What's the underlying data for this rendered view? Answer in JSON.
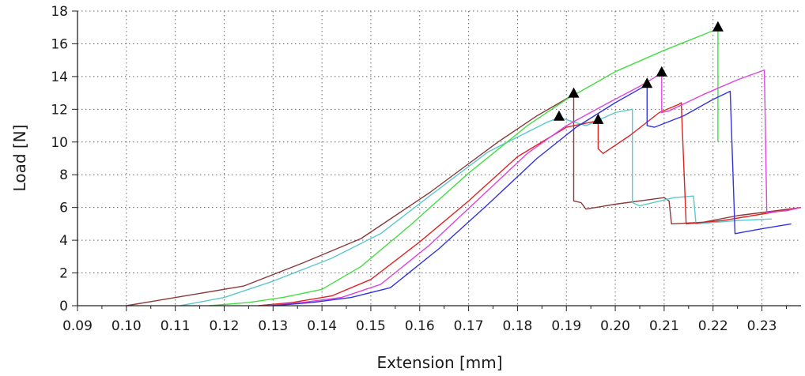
{
  "chart_data": {
    "type": "line",
    "xlabel": "Extension [mm]",
    "ylabel": "Load [N]",
    "xlim": [
      0.09,
      0.238
    ],
    "ylim": [
      0,
      18
    ],
    "xticks": [
      "0.09",
      "0.10",
      "0.11",
      "0.12",
      "0.13",
      "0.14",
      "0.15",
      "0.16",
      "0.17",
      "0.18",
      "0.19",
      "0.20",
      "0.21",
      "0.22",
      "0.23"
    ],
    "yticks": [
      "0",
      "2",
      "4",
      "6",
      "8",
      "10",
      "12",
      "14",
      "16",
      "18"
    ],
    "grid": true,
    "grid_style": "dotted",
    "series": [
      {
        "color": "#8b3a3a",
        "points": [
          [
            0.1,
            0
          ],
          [
            0.112,
            0.6
          ],
          [
            0.124,
            1.2
          ],
          [
            0.136,
            2.6
          ],
          [
            0.148,
            4.1
          ],
          [
            0.162,
            6.9
          ],
          [
            0.176,
            10.0
          ],
          [
            0.184,
            11.6
          ],
          [
            0.1915,
            12.9
          ],
          [
            0.1915,
            6.4
          ],
          [
            0.193,
            6.3
          ],
          [
            0.194,
            5.9
          ],
          [
            0.2,
            6.2
          ],
          [
            0.21,
            6.6
          ],
          [
            0.211,
            6.4
          ],
          [
            0.2115,
            5.0
          ],
          [
            0.218,
            5.1
          ],
          [
            0.225,
            5.5
          ],
          [
            0.238,
            6.0
          ]
        ],
        "marker": [
          0.1915,
          12.9
        ]
      },
      {
        "color": "#5bc8cc",
        "points": [
          [
            0.111,
            0
          ],
          [
            0.12,
            0.5
          ],
          [
            0.13,
            1.5
          ],
          [
            0.142,
            2.9
          ],
          [
            0.152,
            4.4
          ],
          [
            0.162,
            6.7
          ],
          [
            0.174,
            9.4
          ],
          [
            0.186,
            11.2
          ],
          [
            0.1885,
            11.5
          ],
          [
            0.194,
            11.0
          ],
          [
            0.2,
            11.8
          ],
          [
            0.2035,
            12.0
          ],
          [
            0.2035,
            6.3
          ],
          [
            0.205,
            6.1
          ],
          [
            0.212,
            6.6
          ],
          [
            0.216,
            6.7
          ],
          [
            0.2165,
            5.0
          ],
          [
            0.225,
            5.2
          ],
          [
            0.232,
            5.3
          ]
        ],
        "marker": [
          0.1885,
          11.5
        ]
      },
      {
        "color": "#44dd44",
        "points": [
          [
            0.117,
            0
          ],
          [
            0.125,
            0.2
          ],
          [
            0.132,
            0.5
          ],
          [
            0.14,
            1.0
          ],
          [
            0.148,
            2.4
          ],
          [
            0.158,
            4.9
          ],
          [
            0.17,
            8.1
          ],
          [
            0.182,
            11.0
          ],
          [
            0.19,
            12.6
          ],
          [
            0.2,
            14.3
          ],
          [
            0.21,
            15.6
          ],
          [
            0.22,
            16.8
          ],
          [
            0.221,
            16.95
          ],
          [
            0.221,
            10.0
          ]
        ],
        "marker": [
          0.221,
          16.95
        ]
      },
      {
        "color": "#dd2222",
        "points": [
          [
            0.127,
            0
          ],
          [
            0.134,
            0.2
          ],
          [
            0.142,
            0.6
          ],
          [
            0.15,
            1.6
          ],
          [
            0.16,
            3.9
          ],
          [
            0.17,
            6.4
          ],
          [
            0.18,
            9.1
          ],
          [
            0.19,
            10.9
          ],
          [
            0.1965,
            11.3
          ],
          [
            0.1965,
            9.6
          ],
          [
            0.1975,
            9.3
          ],
          [
            0.203,
            10.4
          ],
          [
            0.209,
            11.8
          ],
          [
            0.213,
            12.3
          ],
          [
            0.2135,
            12.4
          ],
          [
            0.2145,
            5.0
          ],
          [
            0.222,
            5.2
          ],
          [
            0.23,
            5.6
          ],
          [
            0.238,
            6.0
          ]
        ],
        "marker": [
          0.1965,
          11.3
        ]
      },
      {
        "color": "#dd44dd",
        "points": [
          [
            0.129,
            0
          ],
          [
            0.136,
            0.2
          ],
          [
            0.144,
            0.5
          ],
          [
            0.152,
            1.3
          ],
          [
            0.162,
            3.7
          ],
          [
            0.172,
            6.5
          ],
          [
            0.182,
            9.3
          ],
          [
            0.19,
            11.0
          ],
          [
            0.198,
            12.3
          ],
          [
            0.205,
            13.4
          ],
          [
            0.2095,
            14.2
          ],
          [
            0.2095,
            11.8
          ],
          [
            0.211,
            11.9
          ],
          [
            0.218,
            12.9
          ],
          [
            0.225,
            13.8
          ],
          [
            0.2305,
            14.4
          ],
          [
            0.231,
            5.7
          ],
          [
            0.235,
            5.8
          ],
          [
            0.238,
            6.0
          ]
        ],
        "marker": [
          0.2095,
          14.2
        ]
      },
      {
        "color": "#3333dd",
        "points": [
          [
            0.13,
            0
          ],
          [
            0.138,
            0.2
          ],
          [
            0.146,
            0.5
          ],
          [
            0.154,
            1.1
          ],
          [
            0.164,
            3.5
          ],
          [
            0.174,
            6.2
          ],
          [
            0.184,
            9.0
          ],
          [
            0.192,
            10.9
          ],
          [
            0.2,
            12.4
          ],
          [
            0.2065,
            13.5
          ],
          [
            0.2065,
            11.0
          ],
          [
            0.208,
            10.9
          ],
          [
            0.214,
            11.6
          ],
          [
            0.22,
            12.6
          ],
          [
            0.2235,
            13.1
          ],
          [
            0.2245,
            4.4
          ],
          [
            0.23,
            4.7
          ],
          [
            0.236,
            5.0
          ]
        ],
        "marker": [
          0.2065,
          13.5
        ]
      }
    ]
  }
}
